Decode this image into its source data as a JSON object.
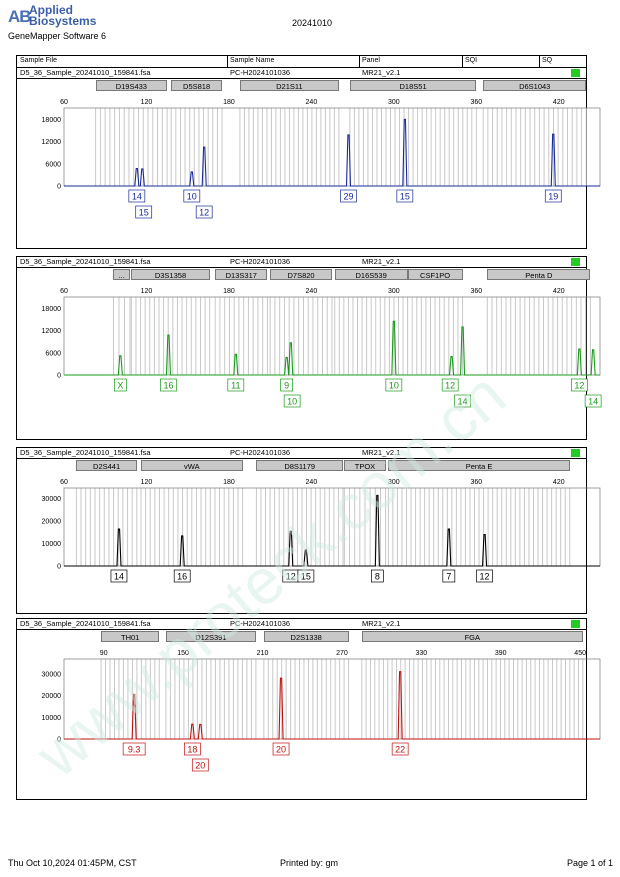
{
  "header": {
    "logo_mark": "AB",
    "logo_line1": "Applied",
    "logo_line2": "Biosystems",
    "software": "GeneMapper Software 6",
    "date_code": "20241010"
  },
  "columns": {
    "sample_file": "Sample File",
    "sample_name": "Sample Name",
    "panel": "Panel",
    "sqi": "SQI",
    "sq": "SQ"
  },
  "panels": [
    {
      "file": "D5_36_Sample_20241010_159841.fsa",
      "sample": "PC-H2024101036",
      "panel_name": "MR21_v2.1",
      "color": "#1a2a9a",
      "x_range": [
        60,
        450
      ],
      "x_ticks": [
        60,
        120,
        180,
        240,
        300,
        360,
        420
      ],
      "y_ticks": [
        0,
        6000,
        12000,
        18000
      ],
      "y_max": 20000,
      "loci": [
        {
          "name": "D19S433",
          "start": 83,
          "end": 135
        },
        {
          "name": "D5S818",
          "start": 138,
          "end": 175
        },
        {
          "name": "D21S11",
          "start": 188,
          "end": 260
        },
        {
          "name": "D18S51",
          "start": 268,
          "end": 360
        },
        {
          "name": "D6S1043",
          "start": 365,
          "end": 440
        }
      ],
      "peaks": [
        {
          "x": 113,
          "h": 4700
        },
        {
          "x": 117,
          "h": 4600
        },
        {
          "x": 153,
          "h": 3800
        },
        {
          "x": 162,
          "h": 10500
        },
        {
          "x": 267,
          "h": 13800
        },
        {
          "x": 308,
          "h": 18000
        },
        {
          "x": 416,
          "h": 14000
        }
      ],
      "labels": [
        {
          "text": "14",
          "x": 113,
          "row": 0
        },
        {
          "text": "15",
          "x": 118,
          "row": 1
        },
        {
          "text": "10",
          "x": 153,
          "row": 0
        },
        {
          "text": "12",
          "x": 162,
          "row": 1
        },
        {
          "text": "29",
          "x": 267,
          "row": 0
        },
        {
          "text": "15",
          "x": 308,
          "row": 0
        },
        {
          "text": "19",
          "x": 416,
          "row": 0
        }
      ]
    },
    {
      "file": "D5_36_Sample_20241010_159841.fsa",
      "sample": "PC-H2024101036",
      "panel_name": "MR21_v2.1",
      "color": "#1a9a1a",
      "x_range": [
        60,
        450
      ],
      "x_ticks": [
        60,
        120,
        180,
        240,
        300,
        360,
        420
      ],
      "y_ticks": [
        0,
        6000,
        12000,
        18000
      ],
      "y_max": 20000,
      "loci": [
        {
          "name": "...",
          "start": 96,
          "end": 108
        },
        {
          "name": "D3S1358",
          "start": 109,
          "end": 166
        },
        {
          "name": "D13S317",
          "start": 170,
          "end": 208
        },
        {
          "name": "D7S820",
          "start": 210,
          "end": 255
        },
        {
          "name": "D16S539",
          "start": 257,
          "end": 310
        },
        {
          "name": "CSF1PO",
          "start": 310,
          "end": 350
        },
        {
          "name": "Penta D",
          "start": 368,
          "end": 443
        }
      ],
      "peaks": [
        {
          "x": 101,
          "h": 5200
        },
        {
          "x": 136,
          "h": 10800
        },
        {
          "x": 185,
          "h": 5600
        },
        {
          "x": 222,
          "h": 4700
        },
        {
          "x": 225,
          "h": 8700
        },
        {
          "x": 300,
          "h": 14500
        },
        {
          "x": 342,
          "h": 5000
        },
        {
          "x": 350,
          "h": 13000
        },
        {
          "x": 435,
          "h": 7000
        },
        {
          "x": 445,
          "h": 6800
        }
      ],
      "labels": [
        {
          "text": "X",
          "x": 101,
          "row": 0
        },
        {
          "text": "16",
          "x": 136,
          "row": 0
        },
        {
          "text": "11",
          "x": 185,
          "row": 0
        },
        {
          "text": "9",
          "x": 222,
          "row": 0
        },
        {
          "text": "10",
          "x": 226,
          "row": 1
        },
        {
          "text": "10",
          "x": 300,
          "row": 0
        },
        {
          "text": "12",
          "x": 341,
          "row": 0
        },
        {
          "text": "14",
          "x": 350,
          "row": 1
        },
        {
          "text": "12",
          "x": 435,
          "row": 0
        },
        {
          "text": "14",
          "x": 445,
          "row": 1
        }
      ]
    },
    {
      "file": "D5_36_Sample_20241010_159841.fsa",
      "sample": "PC-H2024101036",
      "panel_name": "MR21_v2.1",
      "color": "#000000",
      "x_range": [
        60,
        450
      ],
      "x_ticks": [
        60,
        120,
        180,
        240,
        300,
        360,
        420
      ],
      "y_ticks": [
        0,
        10000,
        20000,
        30000
      ],
      "y_max": 33000,
      "loci": [
        {
          "name": "D2S441",
          "start": 69,
          "end": 113
        },
        {
          "name": "vWA",
          "start": 116,
          "end": 190
        },
        {
          "name": "D8S1179",
          "start": 200,
          "end": 263
        },
        {
          "name": "TPOX",
          "start": 264,
          "end": 294
        },
        {
          "name": "Penta E",
          "start": 296,
          "end": 428
        }
      ],
      "peaks": [
        {
          "x": 100,
          "h": 16500
        },
        {
          "x": 146,
          "h": 13400
        },
        {
          "x": 225,
          "h": 15500
        },
        {
          "x": 236,
          "h": 7100
        },
        {
          "x": 288,
          "h": 31500
        },
        {
          "x": 340,
          "h": 16500
        },
        {
          "x": 366,
          "h": 14000
        }
      ],
      "labels": [
        {
          "text": "14",
          "x": 100,
          "row": 0
        },
        {
          "text": "16",
          "x": 146,
          "row": 0
        },
        {
          "text": "12",
          "x": 225,
          "row": 0
        },
        {
          "text": "15",
          "x": 236,
          "row": 0
        },
        {
          "text": "8",
          "x": 288,
          "row": 0
        },
        {
          "text": "7",
          "x": 340,
          "row": 0
        },
        {
          "text": "12",
          "x": 366,
          "row": 0
        }
      ]
    },
    {
      "file": "D5_36_Sample_20241010_159841.fsa",
      "sample": "PC-H2024101036",
      "panel_name": "MR21_v2.1",
      "color": "#c01010",
      "x_range": [
        60,
        465
      ],
      "x_ticks": [
        90,
        150,
        210,
        270,
        330,
        390,
        450
      ],
      "y_ticks": [
        0,
        10000,
        20000,
        30000
      ],
      "y_max": 35000,
      "loci": [
        {
          "name": "TH01",
          "start": 88,
          "end": 132
        },
        {
          "name": "D12S391",
          "start": 137,
          "end": 205
        },
        {
          "name": "D2S1338",
          "start": 211,
          "end": 275
        },
        {
          "name": "FGA",
          "start": 285,
          "end": 452
        }
      ],
      "peaks": [
        {
          "x": 113,
          "h": 20500
        },
        {
          "x": 157,
          "h": 6800
        },
        {
          "x": 163,
          "h": 6700
        },
        {
          "x": 224,
          "h": 28000
        },
        {
          "x": 314,
          "h": 31000
        }
      ],
      "labels": [
        {
          "text": "9.3",
          "x": 113,
          "row": 0
        },
        {
          "text": "18",
          "x": 157,
          "row": 0
        },
        {
          "text": "20",
          "x": 163,
          "row": 1
        },
        {
          "text": "20",
          "x": 224,
          "row": 0
        },
        {
          "text": "22",
          "x": 314,
          "row": 0
        }
      ]
    }
  ],
  "footer": {
    "datetime": "Thu Oct 10,2024 01:45PM, CST",
    "printed_by": "Printed by: gm",
    "page": "Page 1 of 1"
  },
  "watermark": "www.proteck.com.cn"
}
